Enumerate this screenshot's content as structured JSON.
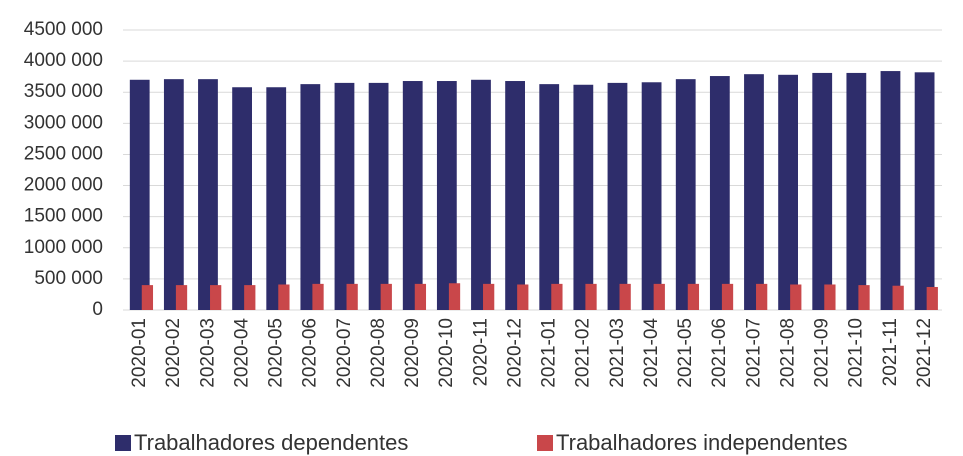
{
  "chart_data": {
    "type": "bar",
    "categories": [
      "2020-01",
      "2020-02",
      "2020-03",
      "2020-04",
      "2020-05",
      "2020-06",
      "2020-07",
      "2020-08",
      "2020-09",
      "2020-10",
      "2020-11",
      "2020-12",
      "2021-01",
      "2021-02",
      "2021-03",
      "2021-04",
      "2021-05",
      "2021-06",
      "2021-07",
      "2021-08",
      "2021-09",
      "2021-10",
      "2021-11",
      "2021-12"
    ],
    "series": [
      {
        "name": "Trabalhadores dependentes",
        "color": "#2e2d6b",
        "values": [
          3700000,
          3710000,
          3710000,
          3580000,
          3580000,
          3630000,
          3650000,
          3650000,
          3680000,
          3680000,
          3700000,
          3680000,
          3630000,
          3620000,
          3650000,
          3660000,
          3710000,
          3760000,
          3790000,
          3780000,
          3810000,
          3810000,
          3840000,
          3820000
        ]
      },
      {
        "name": "Trabalhadores independentes",
        "color": "#c9474a",
        "values": [
          400000,
          400000,
          400000,
          400000,
          410000,
          420000,
          420000,
          420000,
          420000,
          430000,
          420000,
          410000,
          420000,
          420000,
          420000,
          420000,
          420000,
          420000,
          420000,
          410000,
          410000,
          400000,
          390000,
          370000
        ]
      }
    ],
    "ylim": [
      0,
      4500000
    ],
    "yticks": [
      0,
      {
        "value": 500000,
        "label": "500 000"
      },
      {
        "value": 1000000,
        "label": "1000 000"
      },
      {
        "value": 1500000,
        "label": "1500 000"
      },
      {
        "value": 2000000,
        "label": "2000 000"
      },
      {
        "value": 2500000,
        "label": "2500 000"
      },
      {
        "value": 3000000,
        "label": "3000 000"
      },
      {
        "value": 3500000,
        "label": "3500 000"
      },
      {
        "value": 4000000,
        "label": "4000 000"
      },
      {
        "value": 4500000,
        "label": "4500 000"
      }
    ],
    "grid": true,
    "legend": "bottom"
  }
}
